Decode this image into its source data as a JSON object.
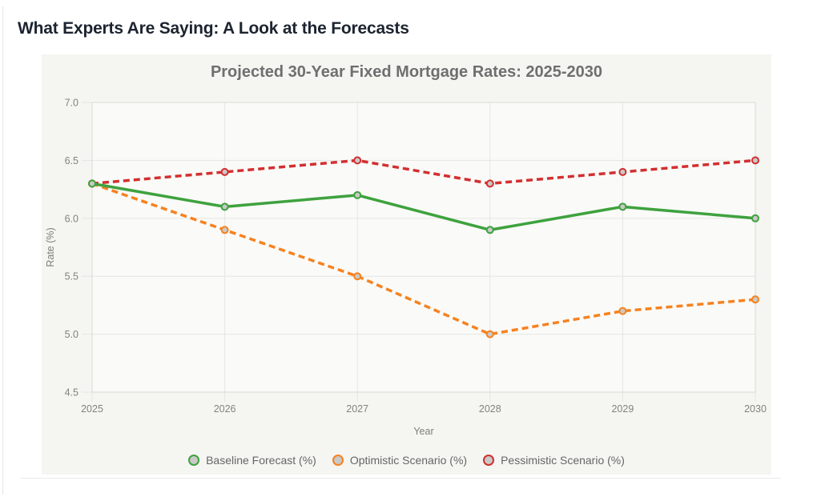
{
  "page": {
    "heading": "What Experts Are Saying: A Look at the Forecasts"
  },
  "chart_data": {
    "type": "line",
    "title": "Projected 30-Year Fixed Mortgage Rates: 2025-2030",
    "xlabel": "Year",
    "ylabel": "Rate (%)",
    "x": [
      2025,
      2026,
      2027,
      2028,
      2029,
      2030
    ],
    "ylim": [
      4.5,
      7.0
    ],
    "yticks": [
      4.5,
      5.0,
      5.5,
      6.0,
      6.5,
      7.0
    ],
    "grid": true,
    "legend_position": "bottom",
    "series": [
      {
        "name": "Baseline Forecast (%)",
        "color": "#3ea23e",
        "line_style": "solid",
        "values": [
          6.3,
          6.1,
          6.2,
          5.9,
          6.1,
          6.0
        ]
      },
      {
        "name": "Optimistic Scenario (%)",
        "color": "#f6821f",
        "line_style": "dashed",
        "values": [
          6.3,
          5.9,
          5.5,
          5.0,
          5.2,
          5.3
        ]
      },
      {
        "name": "Pessimistic Scenario (%)",
        "color": "#d32f2f",
        "line_style": "dashed",
        "values": [
          6.3,
          6.4,
          6.5,
          6.3,
          6.4,
          6.5
        ]
      }
    ],
    "colors": {
      "panel_background": "#f5f5f2",
      "plot_background": "#fafaf8",
      "gridline": "#e5e5e2",
      "plot_border": "#d9d9d6",
      "marker_fill": "#c9c9c7",
      "tick_text": "#82827f",
      "title_text": "#6f6f6f",
      "legend_text": "#666665",
      "heading_text": "#1c2430"
    }
  }
}
